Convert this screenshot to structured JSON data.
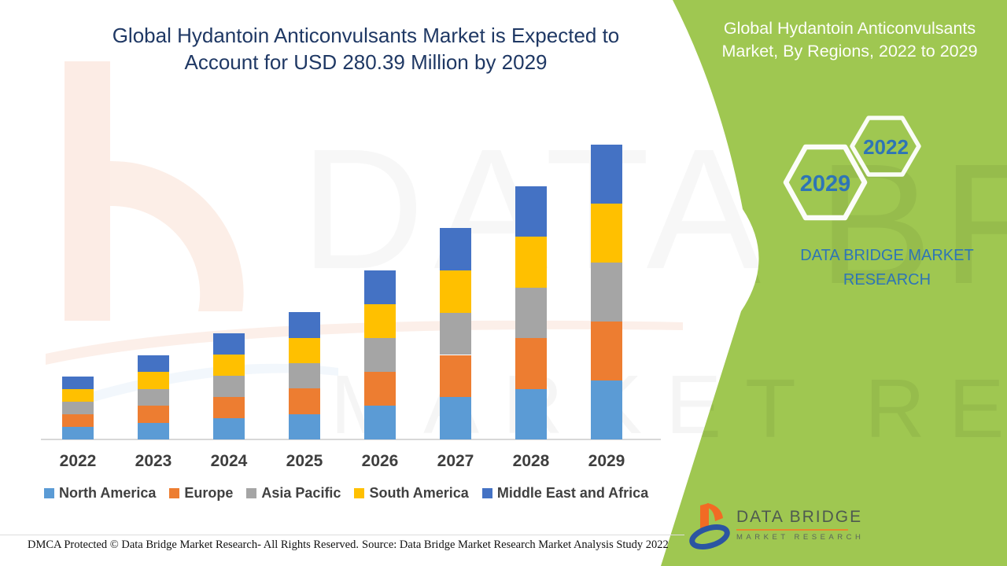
{
  "title": {
    "line1": "Global Hydantoin Anticonvulsants Market is Expected to",
    "line2": "Account for USD 280.39 Million by 2029"
  },
  "side_panel": {
    "heading_line1": "Global Hydantoin Anticonvulsants",
    "heading_line2": "Market, By Regions, 2022 to 2029",
    "badge_start_year": "2022",
    "badge_end_year": "2029",
    "brand_line1": "DATA BRIDGE MARKET",
    "brand_line2": "RESEARCH"
  },
  "chart_data": {
    "type": "bar",
    "stacked": true,
    "unit": "USD Million",
    "title": "Global Hydantoin Anticonvulsants Market, By Regions, 2022 to 2029",
    "xlabel": "",
    "ylabel": "",
    "y_axis": "hidden (no value axis shown; values estimated from 2029 total of USD 280.39 Million)",
    "legend_position": "bottom",
    "categories": [
      "2022",
      "2023",
      "2024",
      "2025",
      "2026",
      "2027",
      "2028",
      "2029"
    ],
    "series": [
      {
        "name": "North America",
        "color": "#5B9BD5",
        "values": [
          12.0,
          16.0,
          20.2,
          24.2,
          32.2,
          40.2,
          48.2,
          56.1
        ]
      },
      {
        "name": "Europe",
        "color": "#ED7D31",
        "values": [
          12.0,
          16.0,
          20.2,
          24.2,
          32.2,
          40.2,
          48.2,
          56.1
        ]
      },
      {
        "name": "Asia Pacific",
        "color": "#A5A5A5",
        "values": [
          12.0,
          16.0,
          20.2,
          24.2,
          32.2,
          40.2,
          48.2,
          56.1
        ]
      },
      {
        "name": "South America",
        "color": "#FFC000",
        "values": [
          12.0,
          16.0,
          20.2,
          24.2,
          32.2,
          40.2,
          48.2,
          56.1
        ]
      },
      {
        "name": "Middle East and Africa",
        "color": "#4472C4",
        "values": [
          12.0,
          16.0,
          20.2,
          24.2,
          32.2,
          40.2,
          48.2,
          55.99
        ]
      }
    ],
    "estimated_totals": [
      60,
      80,
      101,
      121,
      161,
      201,
      241,
      280.39
    ]
  },
  "footer": {
    "copyright": "DMCA Protected © Data Bridge Market Research- All Rights Reserved.",
    "source": "Source: Data Bridge Market Research Market Analysis Study 2022"
  },
  "logo": {
    "title": "DATA BRIDGE",
    "subtitle": "MARKET RESEARCH"
  },
  "watermark": {
    "row1": "DATA BRIDGE",
    "row2": "MARKET RESEARCH"
  },
  "colors": {
    "panel_green": "#9FC751",
    "accent_blue": "#2E75B6",
    "title_navy": "#1F3864"
  }
}
